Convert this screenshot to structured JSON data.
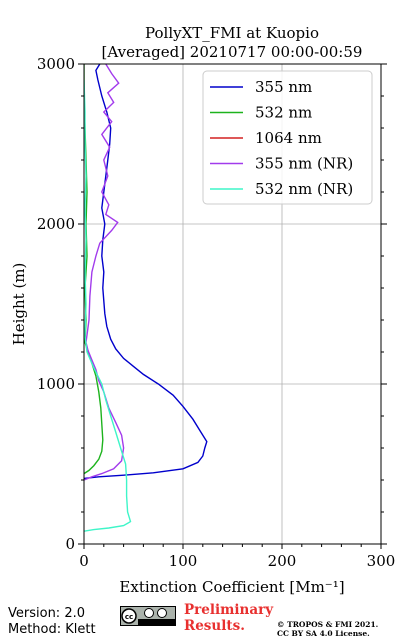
{
  "chart_data": {
    "type": "line",
    "title": "PollyXT_FMI at Kuopio",
    "subtitle": "[Averaged] 20210717 00:00-00:59",
    "xlabel": "Extinction Coefficient [Mm⁻¹]",
    "ylabel": "Height (m)",
    "xlim": [
      0,
      300
    ],
    "ylim": [
      0,
      3000
    ],
    "xticks": [
      0,
      100,
      200,
      300
    ],
    "yticks": [
      0,
      1000,
      2000,
      3000
    ],
    "xtick_labels": [
      "0",
      "100",
      "200",
      "300"
    ],
    "ytick_labels": [
      "0",
      "1000",
      "2000",
      "3000"
    ],
    "grid": true,
    "legend_position": "top-right",
    "series": [
      {
        "name": "355 nm",
        "color": "#0000cc",
        "points": [
          [
            0,
            410
          ],
          [
            15,
            420
          ],
          [
            40,
            430
          ],
          [
            70,
            445
          ],
          [
            100,
            470
          ],
          [
            115,
            510
          ],
          [
            120,
            550
          ],
          [
            122,
            600
          ],
          [
            124,
            640
          ],
          [
            118,
            700
          ],
          [
            110,
            780
          ],
          [
            100,
            860
          ],
          [
            90,
            930
          ],
          [
            75,
            1000
          ],
          [
            60,
            1060
          ],
          [
            50,
            1110
          ],
          [
            40,
            1160
          ],
          [
            32,
            1220
          ],
          [
            27,
            1280
          ],
          [
            23,
            1360
          ],
          [
            21,
            1440
          ],
          [
            20,
            1520
          ],
          [
            19,
            1600
          ],
          [
            20,
            1700
          ],
          [
            18,
            1800
          ],
          [
            19,
            1900
          ],
          [
            21,
            2000
          ],
          [
            18,
            2100
          ],
          [
            20,
            2200
          ],
          [
            22,
            2300
          ],
          [
            24,
            2400
          ],
          [
            26,
            2500
          ],
          [
            27,
            2600
          ],
          [
            23,
            2700
          ],
          [
            18,
            2800
          ],
          [
            14,
            2900
          ],
          [
            12,
            2960
          ],
          [
            16,
            3000
          ]
        ]
      },
      {
        "name": "532 nm",
        "color": "#1db31d",
        "points": [
          [
            0,
            440
          ],
          [
            5,
            460
          ],
          [
            10,
            490
          ],
          [
            15,
            530
          ],
          [
            18,
            580
          ],
          [
            19,
            650
          ],
          [
            18,
            750
          ],
          [
            17,
            850
          ],
          [
            15,
            950
          ],
          [
            12,
            1050
          ],
          [
            8,
            1130
          ],
          [
            4,
            1200
          ],
          [
            1,
            1260
          ],
          [
            2,
            1400
          ],
          [
            1,
            1600
          ],
          [
            3,
            1800
          ],
          [
            2,
            2000
          ],
          [
            3,
            2200
          ],
          [
            2,
            2400
          ],
          [
            1,
            2600
          ],
          [
            0,
            2800
          ],
          [
            0,
            3000
          ]
        ]
      },
      {
        "name": "1064 nm",
        "color": "#d42020",
        "points": []
      },
      {
        "name": "355 nm (NR)",
        "color": "#a23bec",
        "points": [
          [
            0,
            400
          ],
          [
            8,
            420
          ],
          [
            18,
            440
          ],
          [
            30,
            470
          ],
          [
            38,
            520
          ],
          [
            40,
            600
          ],
          [
            38,
            680
          ],
          [
            32,
            760
          ],
          [
            25,
            850
          ],
          [
            20,
            950
          ],
          [
            15,
            1020
          ],
          [
            12,
            1090
          ],
          [
            8,
            1150
          ],
          [
            4,
            1210
          ],
          [
            2,
            1260
          ],
          [
            5,
            1400
          ],
          [
            6,
            1550
          ],
          [
            8,
            1700
          ],
          [
            12,
            1800
          ],
          [
            16,
            1880
          ],
          [
            28,
            1960
          ],
          [
            34,
            2010
          ],
          [
            22,
            2060
          ],
          [
            25,
            2120
          ],
          [
            18,
            2200
          ],
          [
            24,
            2300
          ],
          [
            20,
            2400
          ],
          [
            26,
            2480
          ],
          [
            18,
            2560
          ],
          [
            28,
            2640
          ],
          [
            20,
            2700
          ],
          [
            30,
            2760
          ],
          [
            24,
            2820
          ],
          [
            35,
            2880
          ],
          [
            28,
            2940
          ],
          [
            22,
            3000
          ]
        ]
      },
      {
        "name": "532 nm (NR)",
        "color": "#3ef5c8",
        "points": [
          [
            0,
            80
          ],
          [
            10,
            90
          ],
          [
            25,
            100
          ],
          [
            40,
            115
          ],
          [
            47,
            140
          ],
          [
            44,
            200
          ],
          [
            43,
            300
          ],
          [
            43,
            400
          ],
          [
            42,
            500
          ],
          [
            37,
            600
          ],
          [
            32,
            700
          ],
          [
            27,
            800
          ],
          [
            22,
            900
          ],
          [
            18,
            1000
          ],
          [
            10,
            1100
          ],
          [
            3,
            1200
          ],
          [
            1,
            1300
          ],
          [
            2,
            1500
          ],
          [
            1,
            1700
          ],
          [
            2,
            1900
          ],
          [
            1,
            2100
          ],
          [
            2,
            2300
          ],
          [
            1,
            2500
          ],
          [
            1,
            2700
          ],
          [
            0,
            2900
          ]
        ]
      }
    ]
  },
  "footer": {
    "version": "Version: 2.0",
    "method": "Method: Klett",
    "prelim_line1": "Preliminary",
    "prelim_line2": "Results.",
    "copyright_line1": "© TROPOS & FMI 2021.",
    "copyright_line2": "CC BY SA 4.0 License.",
    "license_badge": "cc-by-sa-icon"
  }
}
